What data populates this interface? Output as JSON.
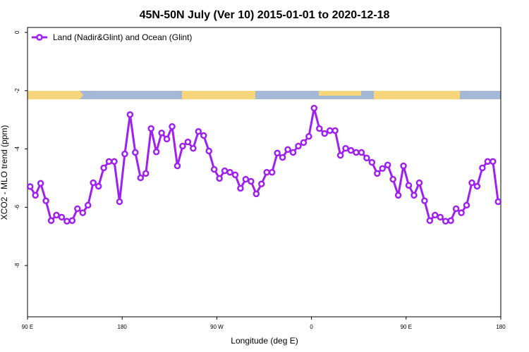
{
  "chart_data": {
    "type": "line",
    "title": "45N-50N July (Ver 10)   2015-01-01 to 2020-12-18",
    "xlabel": "Longitude (deg E)",
    "ylabel": "XCO2 - MLO trend (ppm)",
    "x": [
      92.5,
      97.5,
      102.5,
      107.5,
      112.5,
      117.5,
      122.5,
      127.5,
      132.5,
      137.5,
      142.5,
      147.5,
      152.5,
      157.5,
      162.5,
      167.5,
      172.5,
      177.5,
      182.5,
      187.5,
      192.5,
      197.5,
      202.5,
      207.5,
      212.5,
      217.5,
      222.5,
      227.5,
      232.5,
      237.5,
      242.5,
      247.5,
      252.5,
      257.5,
      262.5,
      267.5,
      272.5,
      277.5,
      282.5,
      287.5,
      292.5,
      297.5,
      302.5,
      307.5,
      312.5,
      317.5,
      322.5,
      327.5,
      332.5,
      337.5,
      342.5,
      347.5,
      352.5,
      357.5,
      362.5,
      367.5,
      372.5,
      377.5,
      382.5,
      387.5,
      392.5,
      397.5,
      402.5,
      407.5,
      412.5,
      417.5,
      422.5,
      427.5,
      432.5,
      437.5,
      442.5,
      447.5,
      452.5,
      457.5,
      462.5,
      467.5,
      472.5,
      477.5,
      482.5,
      487.5,
      492.5,
      497.5,
      502.5,
      507.5,
      512.5,
      517.5,
      522.5,
      527.5,
      532.5,
      537.5
    ],
    "series": [
      {
        "name": "Land (Nadir&Glint) and Ocean (Glint)",
        "color": "#a020f0",
        "values": [
          -5.29,
          -5.59,
          -5.18,
          -5.78,
          -6.46,
          -6.27,
          -6.34,
          -6.48,
          -6.46,
          -6.05,
          -6.19,
          -5.93,
          -5.16,
          -5.28,
          -4.65,
          -4.43,
          -4.43,
          -5.81,
          -4.17,
          -2.82,
          -4.12,
          -4.99,
          -4.84,
          -3.3,
          -4.1,
          -3.45,
          -3.66,
          -3.23,
          -4.58,
          -3.9,
          -3.76,
          -3.98,
          -3.4,
          -3.54,
          -4.07,
          -4.7,
          -5.01,
          -4.75,
          -4.8,
          -4.89,
          -5.35,
          -5.04,
          -5.11,
          -5.54,
          -5.2,
          -4.8,
          -4.8,
          -4.14,
          -4.29,
          -4.02,
          -4.12,
          -3.9,
          -3.78,
          -3.57,
          -2.6,
          -3.3,
          -3.47,
          -3.37,
          -3.37,
          -4.22,
          -3.98,
          -4.05,
          -4.12,
          -4.12,
          -4.31,
          -4.46,
          -4.84,
          -4.67,
          -4.55,
          -5.04,
          -5.59,
          -4.58,
          -5.25,
          -5.59,
          -5.16,
          -5.78,
          -6.46,
          -6.27,
          -6.34,
          -6.48,
          -6.46,
          -6.05,
          -6.19,
          -5.93,
          -5.16,
          -5.28,
          -4.65,
          -4.43,
          -4.43,
          -5.81
        ]
      }
    ],
    "xlim": [
      90,
      540
    ],
    "xticks": [
      {
        "value": 90,
        "label": "90 E"
      },
      180,
      {
        "value": 270,
        "label": "90 W"
      },
      {
        "value": 360,
        "label": "0"
      },
      {
        "value": 450,
        "label": "90 E"
      },
      {
        "value": 540,
        "label": "180"
      }
    ],
    "ylim": [
      -9.76,
      0.17
    ],
    "yticks": [
      0,
      -2,
      -4,
      -6,
      -8
    ],
    "legend": "top-left"
  }
}
